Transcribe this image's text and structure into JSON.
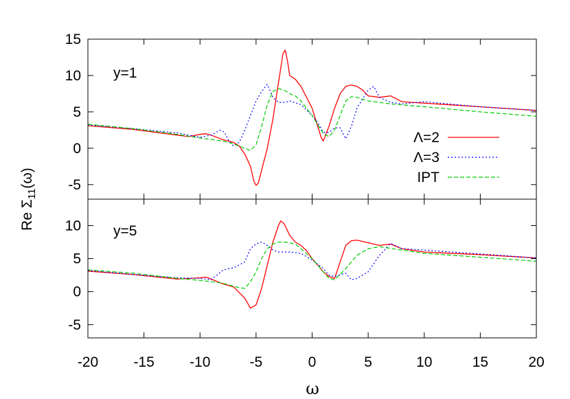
{
  "chart_data": {
    "type": "line",
    "ylabel_prefix": "Re ",
    "ylabel_sigma": "Σ",
    "ylabel_sub": "11",
    "ylabel_suffix": "(ω)",
    "xlabel": "ω",
    "xlim": [
      -20,
      20
    ],
    "xticks": [
      -20,
      -15,
      -10,
      -5,
      0,
      5,
      10,
      15,
      20
    ],
    "legend_placement": "right, top panel",
    "panels": [
      {
        "label": "y=1",
        "ylim": [
          -7,
          15
        ],
        "yticks": [
          -5,
          0,
          5,
          10,
          15
        ],
        "series": [
          {
            "name": "Λ=2",
            "color": "#ff0000",
            "style": "solid",
            "x": [
              -20,
              -16,
              -12,
              -11,
              -10,
              -9.5,
              -9,
              -8,
              -7,
              -6.5,
              -6,
              -5.5,
              -5.2,
              -5,
              -4.8,
              -4.5,
              -4,
              -3.5,
              -3,
              -2.8,
              -2.6,
              -2.4,
              -2.2,
              -2,
              -1.5,
              -1,
              0,
              0.5,
              0.8,
              1,
              1.2,
              1.5,
              2,
              2.5,
              3,
              3.5,
              4,
              4.5,
              5,
              6,
              7,
              8,
              10,
              15,
              20
            ],
            "y": [
              3.1,
              2.6,
              1.8,
              1.6,
              1.9,
              2.0,
              1.8,
              1.2,
              0.8,
              0.3,
              -0.8,
              -2.5,
              -4.5,
              -5.1,
              -4.8,
              -3,
              0,
              4,
              9,
              11,
              13,
              13.5,
              12,
              10,
              9.5,
              8.5,
              5.5,
              3,
              1.5,
              1.0,
              1.8,
              3,
              5.5,
              7.5,
              8.5,
              8.7,
              8.5,
              8.0,
              7.2,
              7.0,
              7.2,
              6.4,
              6.2,
              5.7,
              5.2
            ]
          },
          {
            "name": "Λ=3",
            "color": "#0000ff",
            "style": "dotted",
            "x": [
              -20,
              -16,
              -12,
              -10,
              -9,
              -8.2,
              -7.8,
              -7.5,
              -7,
              -6.5,
              -6,
              -5.5,
              -5,
              -4.5,
              -4,
              -3.5,
              -3,
              -2.5,
              -2,
              -1,
              0,
              0.5,
              1,
              1.5,
              2,
              2.5,
              3,
              3.5,
              4,
              5,
              5.5,
              6,
              7,
              8,
              10,
              15,
              20
            ],
            "y": [
              3.2,
              2.7,
              2.1,
              1.5,
              1.8,
              2.5,
              2.2,
              1.2,
              0.3,
              0.8,
              2.5,
              4.5,
              6.5,
              7.8,
              8.8,
              7.0,
              6.3,
              6.3,
              6.5,
              6.0,
              4.5,
              3.5,
              2.2,
              2.2,
              2.8,
              2.8,
              1.3,
              3.0,
              5.5,
              8.0,
              8.5,
              7.0,
              6.3,
              6.1,
              6.4,
              5.7,
              5.2
            ]
          },
          {
            "name": "IPT",
            "color": "#00cc00",
            "style": "dashed",
            "x": [
              -20,
              -16,
              -12,
              -10,
              -8,
              -7,
              -6,
              -5.5,
              -5,
              -4.5,
              -4,
              -3.5,
              -3,
              -2.5,
              -2,
              -1.5,
              -1,
              0,
              1,
              1.5,
              2,
              2.5,
              3,
              3.5,
              4,
              5,
              7,
              10,
              15,
              20
            ],
            "y": [
              3.3,
              2.7,
              1.9,
              1.4,
              1.0,
              0.6,
              0.0,
              -0.3,
              0.5,
              3.0,
              6.0,
              7.8,
              8.2,
              8.0,
              7.5,
              7.2,
              6.5,
              4.5,
              2.0,
              1.6,
              2.5,
              4.5,
              6.5,
              7.1,
              7.0,
              6.5,
              6.1,
              5.7,
              5.0,
              4.4
            ]
          }
        ]
      },
      {
        "label": "y=5",
        "ylim": [
          -7,
          15
        ],
        "yticks": [
          -5,
          0,
          5,
          10
        ],
        "series": [
          {
            "name": "Λ=2",
            "color": "#ff0000",
            "style": "solid",
            "x": [
              -20,
              -16,
              -12,
              -10,
              -9.5,
              -9,
              -8,
              -7,
              -6,
              -5.5,
              -5,
              -4.5,
              -4,
              -3.5,
              -3,
              -2.8,
              -2.5,
              -2,
              -1.5,
              -1,
              -0.5,
              0,
              0.5,
              1,
              1.5,
              2,
              2.5,
              3,
              3.5,
              4,
              5,
              6,
              7,
              8,
              10,
              15,
              20
            ],
            "y": [
              3.1,
              2.6,
              1.9,
              2.1,
              2.2,
              1.9,
              1.2,
              0.7,
              -1.0,
              -2.5,
              -2.0,
              0.5,
              4.0,
              7.5,
              10.0,
              10.7,
              10.3,
              8.5,
              7.5,
              7.0,
              6.2,
              5.0,
              4.0,
              3.0,
              2.3,
              2.0,
              4.5,
              7.0,
              7.7,
              7.8,
              7.4,
              7.0,
              7.2,
              6.5,
              6.0,
              5.6,
              5.1
            ]
          },
          {
            "name": "Λ=3",
            "color": "#0000ff",
            "style": "dotted",
            "x": [
              -20,
              -16,
              -12,
              -10,
              -9,
              -8.5,
              -8,
              -7.5,
              -7,
              -6,
              -5.5,
              -5,
              -4.5,
              -4,
              -3.5,
              -3,
              -2.5,
              -2,
              -1,
              0,
              1,
              1.5,
              2,
              3,
              3.5,
              4,
              5,
              6,
              7,
              8,
              10,
              15,
              20
            ],
            "y": [
              3.2,
              2.6,
              2.1,
              2.0,
              1.8,
              2.5,
              3.2,
              3.5,
              3.6,
              4.5,
              6.5,
              7.2,
              7.5,
              7.0,
              6.3,
              6.0,
              6.0,
              6.0,
              5.8,
              4.8,
              3.5,
              2.5,
              2.3,
              2.8,
              1.8,
              2.0,
              3.0,
              5.5,
              7.3,
              6.5,
              6.3,
              5.7,
              5.1
            ]
          },
          {
            "name": "IPT",
            "color": "#00cc00",
            "style": "dashed",
            "x": [
              -20,
              -16,
              -12,
              -10,
              -8,
              -7,
              -6.5,
              -6,
              -5.5,
              -5,
              -4.5,
              -4,
              -3.5,
              -3,
              -2.5,
              -2,
              -1.5,
              -1,
              0,
              1,
              1.5,
              2,
              3,
              4,
              5,
              6,
              8,
              10,
              15,
              20
            ],
            "y": [
              3.3,
              2.8,
              2.0,
              1.7,
              1.3,
              0.8,
              0.6,
              0.5,
              1.5,
              3.0,
              5.0,
              6.5,
              7.2,
              7.5,
              7.5,
              7.4,
              7.2,
              6.5,
              5.0,
              3.0,
              2.0,
              1.8,
              3.5,
              5.5,
              6.5,
              6.8,
              6.3,
              5.8,
              5.2,
              4.6
            ]
          }
        ]
      }
    ]
  }
}
